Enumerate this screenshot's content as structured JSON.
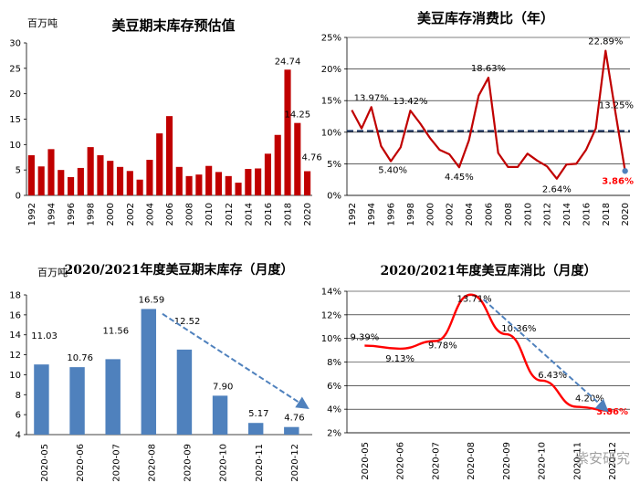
{
  "colors": {
    "bar_red": "#c00000",
    "line_red": "#c00000",
    "bar_blue": "#4f81bd",
    "line_red_bright": "#ff0000",
    "dashed_navy": "#1f3864",
    "arrow_blue": "#4f81bd",
    "last_point_blue": "#4f81bd",
    "highlight_red": "#ff0000"
  },
  "watermark": "紫安研究",
  "chart_data": [
    {
      "id": "c1",
      "type": "bar",
      "title": "美豆期末库存预估值",
      "unit": "百万吨",
      "xlabel": "",
      "ylabel": "百万吨",
      "ylim": [
        0,
        30
      ],
      "yticks": [
        "0",
        "5",
        "10",
        "15",
        "20",
        "25",
        "30"
      ],
      "grid": false,
      "categories": [
        "1992",
        "1993",
        "1994",
        "1995",
        "1996",
        "1997",
        "1998",
        "1999",
        "2000",
        "2001",
        "2002",
        "2003",
        "2004",
        "2005",
        "2006",
        "2007",
        "2008",
        "2009",
        "2010",
        "2011",
        "2012",
        "2013",
        "2014",
        "2015",
        "2016",
        "2017",
        "2018",
        "2019",
        "2020"
      ],
      "x_tick_labels": [
        "1992",
        "1994",
        "1996",
        "1998",
        "2000",
        "2002",
        "2004",
        "2006",
        "2008",
        "2010",
        "2012",
        "2014",
        "2016",
        "2018",
        "2020"
      ],
      "values": [
        7.9,
        5.7,
        9.1,
        5.0,
        3.6,
        5.4,
        9.5,
        7.9,
        6.8,
        5.6,
        4.8,
        3.1,
        7.0,
        12.2,
        15.6,
        5.6,
        3.8,
        4.1,
        5.8,
        4.6,
        3.8,
        2.5,
        5.2,
        5.3,
        8.2,
        11.9,
        24.74,
        14.25,
        4.76
      ],
      "data_labels": [
        {
          "category": "2018",
          "text": "24.74"
        },
        {
          "category": "2019",
          "text": "14.25"
        },
        {
          "category": "2020",
          "text": "4.76"
        }
      ]
    },
    {
      "id": "c2",
      "type": "line",
      "title": "美豆库存消费比（年）",
      "xlabel": "",
      "ylabel": "",
      "ylim": [
        0,
        25
      ],
      "yticks": [
        "0%",
        "5%",
        "10%",
        "15%",
        "20%",
        "25%"
      ],
      "grid": true,
      "categories": [
        "1992",
        "1993",
        "1994",
        "1995",
        "1996",
        "1997",
        "1998",
        "1999",
        "2000",
        "2001",
        "2002",
        "2003",
        "2004",
        "2005",
        "2006",
        "2007",
        "2008",
        "2009",
        "2010",
        "2011",
        "2012",
        "2013",
        "2014",
        "2015",
        "2016",
        "2017",
        "2018",
        "2019",
        "2020"
      ],
      "x_tick_labels": [
        "1992",
        "1994",
        "1996",
        "1998",
        "2000",
        "2002",
        "2004",
        "2006",
        "2008",
        "2010",
        "2012",
        "2014",
        "2016",
        "2018",
        "2020"
      ],
      "values": [
        13.5,
        10.6,
        13.97,
        7.8,
        5.4,
        7.6,
        13.42,
        11.4,
        9.1,
        7.2,
        6.5,
        4.45,
        8.7,
        15.8,
        18.63,
        6.7,
        4.5,
        4.5,
        6.6,
        5.5,
        4.6,
        2.64,
        4.9,
        5.0,
        7.2,
        10.6,
        22.89,
        13.25,
        3.86
      ],
      "reference_line": {
        "value": 10.2,
        "style": "dashed"
      },
      "data_labels": [
        {
          "category": "1994",
          "text": "13.97%"
        },
        {
          "category": "1996",
          "text": "5.40%"
        },
        {
          "category": "1998",
          "text": "13.42%"
        },
        {
          "category": "2003",
          "text": "4.45%"
        },
        {
          "category": "2006",
          "text": "18.63%"
        },
        {
          "category": "2013",
          "text": "2.64%"
        },
        {
          "category": "2018",
          "text": "22.89%"
        },
        {
          "category": "2019",
          "text": "13.25%"
        },
        {
          "category": "2020",
          "text": "3.86%",
          "highlight": true
        }
      ]
    },
    {
      "id": "c3",
      "type": "bar",
      "title": "2020/2021年度美豆期末库存（月度）",
      "unit": "百万吨",
      "xlabel": "",
      "ylabel": "百万吨",
      "ylim": [
        4,
        18
      ],
      "yticks": [
        "4",
        "6",
        "8",
        "10",
        "12",
        "14",
        "16",
        "18"
      ],
      "grid": false,
      "categories": [
        "2020-05",
        "2020-06",
        "2020-07",
        "2020-08",
        "2020-09",
        "2020-10",
        "2020-11",
        "2020-12"
      ],
      "values": [
        11.03,
        10.76,
        11.56,
        16.59,
        12.52,
        7.9,
        5.17,
        4.76
      ],
      "data_labels": [
        "11.03",
        "10.76",
        "11.56",
        "16.59",
        "12.52",
        "7.90",
        "5.17",
        "4.76"
      ],
      "trend_arrow": {
        "from_category": "2020-08",
        "to_category": "2020-12",
        "from_value": 16.1,
        "to_value": 6.7
      }
    },
    {
      "id": "c4",
      "type": "line",
      "title": "2020/2021年度美豆库消比（月度）",
      "xlabel": "",
      "ylabel": "",
      "ylim": [
        2,
        14
      ],
      "yticks": [
        "2%",
        "4%",
        "6%",
        "8%",
        "10%",
        "12%",
        "14%"
      ],
      "grid": true,
      "categories": [
        "2020-05",
        "2020-06",
        "2020-07",
        "2020-08",
        "2020-09",
        "2020-10",
        "2020-11",
        "2020-12"
      ],
      "values": [
        9.39,
        9.13,
        9.78,
        13.71,
        10.36,
        6.43,
        4.2,
        3.86
      ],
      "data_labels": [
        "9.39%",
        "9.13%",
        "9.78%",
        "13.71%",
        "10.36%",
        "6.43%",
        "4.20%",
        "3.86%"
      ],
      "highlight_last": true,
      "trend_arrow": {
        "from_category": "2020-08",
        "to_category": "2020-12",
        "from_value": 13.3,
        "to_value": 3.9
      }
    }
  ]
}
